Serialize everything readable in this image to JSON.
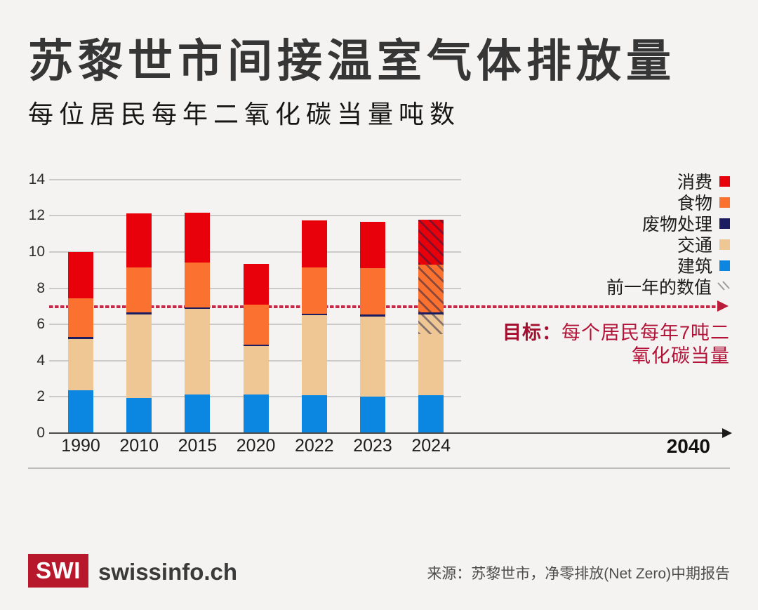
{
  "title": "苏黎世市间接温室气体排放量",
  "subtitle": "每位居民每年二氧化碳当量吨数",
  "colors": {
    "consumption": "#e8000b",
    "food": "#fb7130",
    "waste": "#1c1c60",
    "transport": "#eec795",
    "buildings": "#0c87e1",
    "grid": "#cbcac8",
    "axis": "#4a4a4a",
    "background": "#f4f3f1",
    "target_line": "#c02a48",
    "target_text": "#b31338",
    "logo_red": "#b7182b"
  },
  "legend": {
    "items": [
      {
        "label": "消费",
        "key": "consumption"
      },
      {
        "label": "食物",
        "key": "food"
      },
      {
        "label": "废物处理",
        "key": "waste"
      },
      {
        "label": "交通",
        "key": "transport"
      },
      {
        "label": "建筑",
        "key": "buildings"
      },
      {
        "label": "前一年的数值",
        "key": "prev_year_hatch"
      }
    ]
  },
  "chart_data": {
    "type": "bar",
    "stacked": true,
    "title": "苏黎世市间接温室气体排放量",
    "ylabel": "每位居民每年二氧化碳当量吨数",
    "categories": [
      "1990",
      "2010",
      "2015",
      "2020",
      "2022",
      "2023",
      "2024"
    ],
    "yticks": [
      0,
      2,
      4,
      6,
      8,
      10,
      12,
      14
    ],
    "ylim": [
      0,
      14
    ],
    "grid": true,
    "legend_position": "right",
    "series": [
      {
        "name": "建筑",
        "key": "buildings",
        "values": [
          2.35,
          1.95,
          2.15,
          2.15,
          2.1,
          2.0,
          2.1
        ]
      },
      {
        "name": "交通",
        "key": "transport",
        "values": [
          2.85,
          4.6,
          4.7,
          2.65,
          4.4,
          4.45,
          4.45
        ]
      },
      {
        "name": "废物处理",
        "key": "waste",
        "values": [
          0.1,
          0.1,
          0.1,
          0.1,
          0.1,
          0.1,
          0.1
        ]
      },
      {
        "name": "食物",
        "key": "food",
        "values": [
          2.15,
          2.5,
          2.45,
          2.2,
          2.55,
          2.55,
          2.65
        ]
      },
      {
        "name": "消费",
        "key": "consumption",
        "values": [
          2.55,
          3.0,
          2.75,
          2.25,
          2.6,
          2.55,
          2.5
        ]
      }
    ],
    "totals": [
      10.0,
      12.15,
      12.15,
      9.35,
      11.75,
      11.65,
      11.8
    ],
    "bars": [
      {
        "year": "1990",
        "segments": [
          {
            "k": "buildings",
            "v": 2.35
          },
          {
            "k": "transport",
            "v": 2.85
          },
          {
            "k": "waste",
            "v": 0.1
          },
          {
            "k": "food",
            "v": 2.15
          },
          {
            "k": "consumption",
            "v": 2.55
          }
        ]
      },
      {
        "year": "2010",
        "segments": [
          {
            "k": "buildings",
            "v": 1.95
          },
          {
            "k": "transport",
            "v": 4.6
          },
          {
            "k": "waste",
            "v": 0.1
          },
          {
            "k": "food",
            "v": 2.5
          },
          {
            "k": "consumption",
            "v": 3.0
          }
        ]
      },
      {
        "year": "2015",
        "segments": [
          {
            "k": "buildings",
            "v": 2.15
          },
          {
            "k": "transport",
            "v": 4.7
          },
          {
            "k": "waste",
            "v": 0.1
          },
          {
            "k": "food",
            "v": 2.45
          },
          {
            "k": "consumption",
            "v": 2.75
          }
        ]
      },
      {
        "year": "2020",
        "segments": [
          {
            "k": "buildings",
            "v": 2.15
          },
          {
            "k": "transport",
            "v": 2.65
          },
          {
            "k": "waste",
            "v": 0.1
          },
          {
            "k": "food",
            "v": 2.2
          },
          {
            "k": "consumption",
            "v": 2.25
          }
        ]
      },
      {
        "year": "2022",
        "segments": [
          {
            "k": "buildings",
            "v": 2.1
          },
          {
            "k": "transport",
            "v": 4.4
          },
          {
            "k": "waste",
            "v": 0.1
          },
          {
            "k": "food",
            "v": 2.55
          },
          {
            "k": "consumption",
            "v": 2.6
          }
        ]
      },
      {
        "year": "2023",
        "segments": [
          {
            "k": "buildings",
            "v": 2.0
          },
          {
            "k": "transport",
            "v": 4.45
          },
          {
            "k": "waste",
            "v": 0.1
          },
          {
            "k": "food",
            "v": 2.55
          },
          {
            "k": "consumption",
            "v": 2.55
          }
        ]
      },
      {
        "year": "2024",
        "segments": [
          {
            "k": "buildings",
            "v": 2.1
          },
          {
            "k": "transport",
            "v": 3.35
          },
          {
            "k": "transport",
            "v": 1.1,
            "h": true
          },
          {
            "k": "waste",
            "v": 0.1
          },
          {
            "k": "food",
            "v": 2.65,
            "h": true
          },
          {
            "k": "consumption",
            "v": 2.5,
            "h": true
          }
        ]
      }
    ],
    "target_line": {
      "value": 7,
      "bold": "目标：",
      "line1": "每个居民每年7吨二",
      "line2": "氧化碳当量"
    },
    "future_label": "2040",
    "hatch_note": "前一年的数值"
  },
  "footer": {
    "logo": "SWI",
    "brand": "swissinfo.ch",
    "source": "来源：苏黎世市，净零排放(Net Zero)中期报告"
  }
}
